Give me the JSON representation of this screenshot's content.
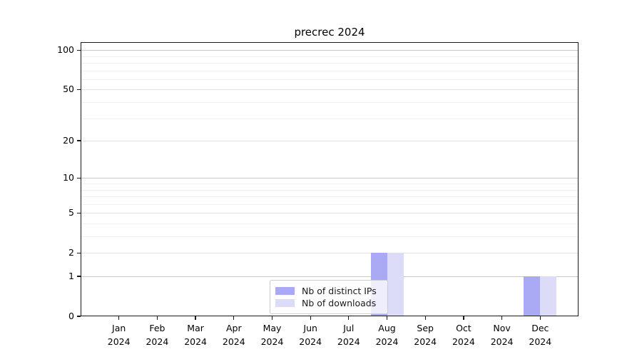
{
  "chart_data": {
    "type": "bar",
    "title": "precrec 2024",
    "categories": [
      "Jan 2024",
      "Feb 2024",
      "Mar 2024",
      "Apr 2024",
      "May 2024",
      "Jun 2024",
      "Jul 2024",
      "Aug 2024",
      "Sep 2024",
      "Oct 2024",
      "Nov 2024",
      "Dec 2024"
    ],
    "series": [
      {
        "name": "Nb of distinct IPs",
        "color": "#a9a9f4",
        "values": [
          0,
          0,
          0,
          0,
          0,
          0,
          0,
          2,
          0,
          0,
          0,
          1
        ]
      },
      {
        "name": "Nb of downloads",
        "color": "#dcdcf8",
        "values": [
          0,
          0,
          0,
          0,
          0,
          0,
          0,
          2,
          0,
          0,
          0,
          1
        ]
      }
    ],
    "xlabel": "",
    "ylabel": "",
    "grid": true,
    "legend_position": "bottom-center",
    "y_axis": {
      "scale": "log1p",
      "tick_labels": [
        "0",
        "1",
        "2",
        "5",
        "10",
        "20",
        "50",
        "100"
      ],
      "tick_values": [
        0,
        1,
        2,
        5,
        10,
        20,
        50,
        100
      ],
      "decade_tick_values": [
        1,
        10,
        100
      ],
      "minor_tick_values": [
        3,
        4,
        6,
        7,
        8,
        9,
        30,
        40,
        60,
        70,
        80,
        90
      ],
      "ylim": [
        0,
        115
      ]
    }
  }
}
